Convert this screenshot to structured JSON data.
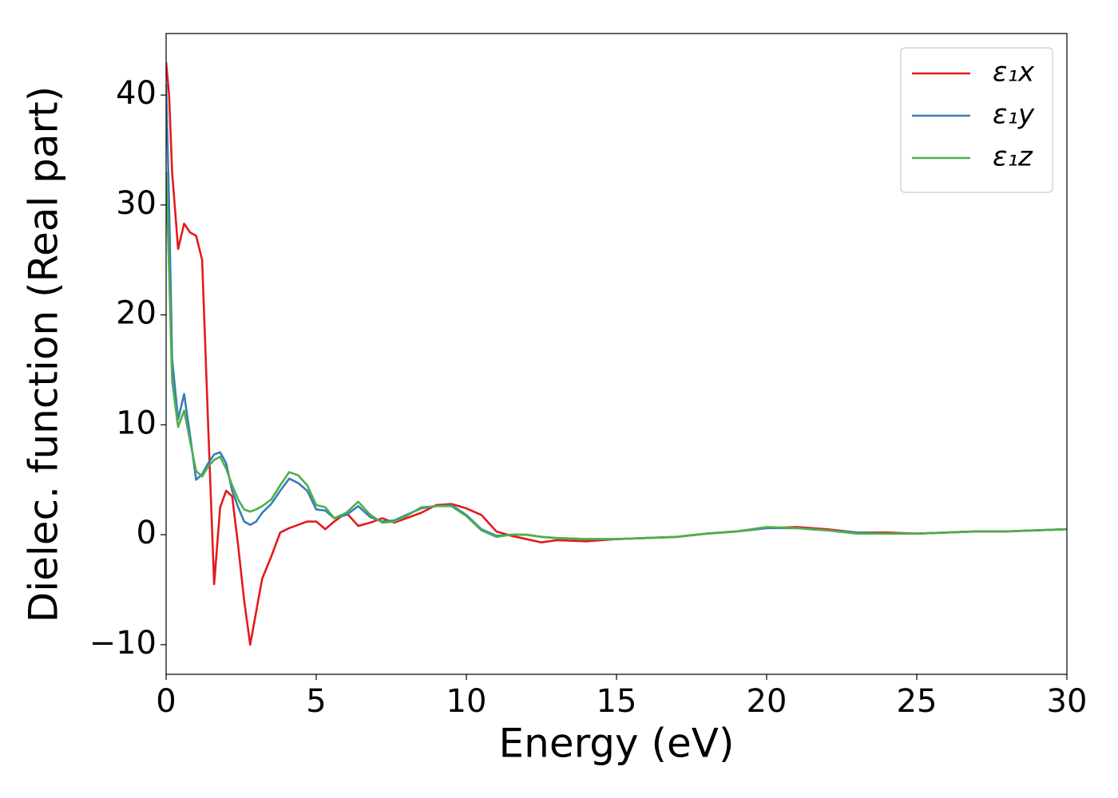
{
  "chart_data": {
    "type": "line",
    "xlabel": "Energy (eV)",
    "ylabel": "Dielec. function (Real part)",
    "x": [
      0,
      0.1,
      0.2,
      0.4,
      0.6,
      0.8,
      1.0,
      1.2,
      1.4,
      1.6,
      1.8,
      2.0,
      2.2,
      2.4,
      2.6,
      2.8,
      3.0,
      3.2,
      3.5,
      3.8,
      4.1,
      4.4,
      4.7,
      5.0,
      5.3,
      5.6,
      6.0,
      6.4,
      6.8,
      7.2,
      7.6,
      8.0,
      8.5,
      9.0,
      9.5,
      10.0,
      10.5,
      11.0,
      11.5,
      12.0,
      12.5,
      13.0,
      14.0,
      15.0,
      16.0,
      17.0,
      18.0,
      19.0,
      20.0,
      21.0,
      22.0,
      23.0,
      24.0,
      25.0,
      26.0,
      27.0,
      28.0,
      29.0,
      30.0
    ],
    "series": [
      {
        "name": "ε₁x",
        "color": "#e41a1c",
        "values": [
          43,
          40,
          33,
          26,
          28.3,
          27.5,
          27.2,
          25,
          10,
          -4.5,
          2.5,
          4,
          3.5,
          -1,
          -6,
          -10,
          -7,
          -4,
          -2,
          0.2,
          0.6,
          0.9,
          1.2,
          1.2,
          0.5,
          1.2,
          2,
          0.8,
          1.1,
          1.5,
          1.1,
          1.5,
          2.0,
          2.7,
          2.8,
          2.4,
          1.8,
          0.3,
          -0.1,
          -0.4,
          -0.7,
          -0.5,
          -0.6,
          -0.4,
          -0.3,
          -0.2,
          0.1,
          0.3,
          0.6,
          0.7,
          0.5,
          0.2,
          0.2,
          0.1,
          0.2,
          0.3,
          0.3,
          0.4,
          0.5
        ]
      },
      {
        "name": "ε₁y",
        "color": "#377eb8",
        "values": [
          41,
          30,
          16,
          10.5,
          12.8,
          9,
          5,
          5.5,
          6.5,
          7.3,
          7.5,
          6.5,
          4,
          2.5,
          1.2,
          0.9,
          1.2,
          2,
          2.8,
          4,
          5.1,
          4.7,
          4.0,
          2.3,
          2.2,
          1.5,
          1.8,
          2.6,
          1.6,
          1.2,
          1.3,
          1.8,
          2.4,
          2.6,
          2.7,
          1.8,
          0.5,
          -0.1,
          0,
          0,
          -0.2,
          -0.3,
          -0.4,
          -0.4,
          -0.3,
          -0.2,
          0.1,
          0.3,
          0.6,
          0.6,
          0.4,
          0.2,
          0.1,
          0.1,
          0.2,
          0.3,
          0.3,
          0.4,
          0.5
        ]
      },
      {
        "name": "ε₁z",
        "color": "#4daf4a",
        "values": [
          33,
          24,
          14,
          9.8,
          11.3,
          8.5,
          5.8,
          5.3,
          6.2,
          6.8,
          7.1,
          6,
          4.5,
          3.2,
          2.3,
          2.1,
          2.3,
          2.6,
          3.2,
          4.5,
          5.7,
          5.4,
          4.5,
          2.7,
          2.5,
          1.5,
          2.0,
          3.0,
          1.8,
          1.1,
          1.2,
          1.7,
          2.5,
          2.6,
          2.6,
          1.7,
          0.4,
          -0.2,
          0,
          0,
          -0.2,
          -0.3,
          -0.4,
          -0.4,
          -0.3,
          -0.2,
          0.1,
          0.3,
          0.7,
          0.6,
          0.4,
          0.1,
          0.1,
          0.1,
          0.2,
          0.3,
          0.3,
          0.4,
          0.5
        ]
      }
    ],
    "xlim": [
      0,
      30
    ],
    "xticks": [
      0,
      5,
      10,
      15,
      20,
      25,
      30
    ],
    "ylim": [
      -12.7,
      45.6
    ],
    "yticks": [
      {
        "value": -10,
        "label": "−10"
      },
      0,
      10,
      20,
      30,
      40
    ],
    "grid": false,
    "legend": "upper right"
  }
}
